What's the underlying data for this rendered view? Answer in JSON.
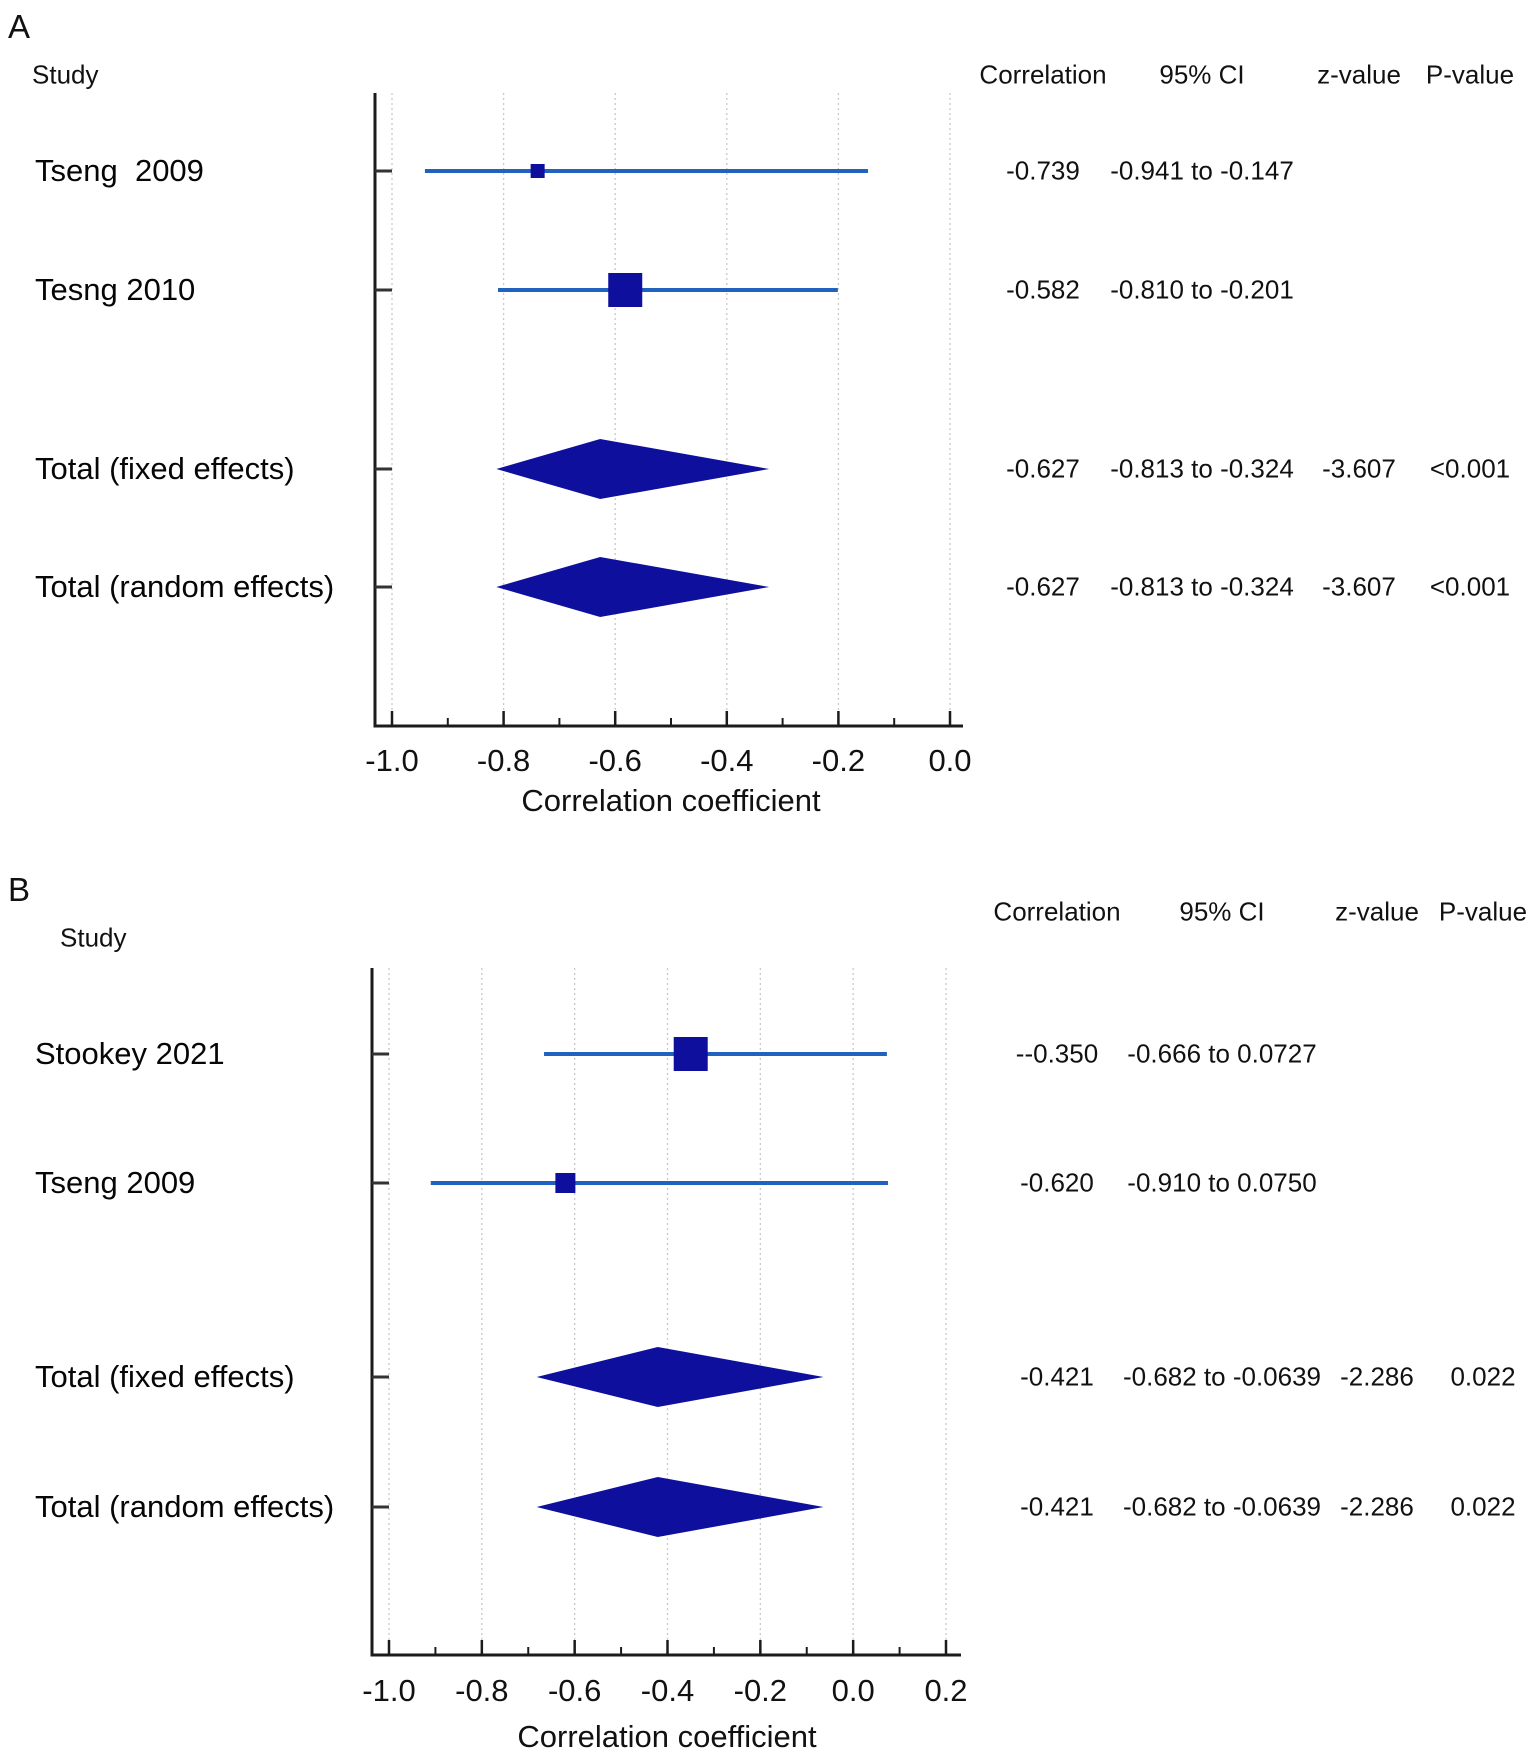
{
  "colors": {
    "marker": "#0f0f9d",
    "ci_line": "#2262bf",
    "axis": "#1b1b1b",
    "grid": "#c9c9c9",
    "text": "#111111"
  },
  "chart_data": [
    {
      "type": "forest",
      "panel_label": "A",
      "study_header": "Study",
      "columns": [
        "Correlation",
        "95% CI",
        "z-value",
        "P-value"
      ],
      "xlabel": "Correlation coefficient",
      "x_tick_labels": [
        "-1.0",
        "-0.8",
        "-0.6",
        "-0.4",
        "-0.2",
        "0.0"
      ],
      "x_tick_values": [
        -1.0,
        -0.8,
        -0.6,
        -0.4,
        -0.2,
        0.0
      ],
      "grid": true,
      "rows": [
        {
          "study": "Tseng  2009",
          "marker": "square",
          "size": 14,
          "est": -0.739,
          "lo": -0.941,
          "hi": -0.147,
          "cells": [
            "-0.739",
            "-0.941 to -0.147",
            "",
            ""
          ]
        },
        {
          "study": "Tesng 2010",
          "marker": "square",
          "size": 34,
          "est": -0.582,
          "lo": -0.81,
          "hi": -0.201,
          "cells": [
            "-0.582",
            "-0.810 to -0.201",
            "",
            ""
          ]
        },
        {
          "study": "Total (fixed effects)",
          "marker": "diamond",
          "est": -0.627,
          "lo": -0.813,
          "hi": -0.324,
          "cells": [
            "-0.627",
            "-0.813 to -0.324",
            "-3.607",
            "<0.001"
          ]
        },
        {
          "study": "Total (random effects)",
          "marker": "diamond",
          "est": -0.627,
          "lo": -0.813,
          "hi": -0.324,
          "cells": [
            "-0.627",
            "-0.813 to -0.324",
            "-3.607",
            "<0.001"
          ]
        }
      ]
    },
    {
      "type": "forest",
      "panel_label": "B",
      "study_header": "Study",
      "columns": [
        "Correlation",
        "95% CI",
        "z-value",
        "P-value"
      ],
      "xlabel": "Correlation coefficient",
      "x_tick_labels": [
        "-1.0",
        "-0.8",
        "-0.6",
        "-0.4",
        "-0.2",
        "0.0",
        "0.2"
      ],
      "x_tick_values": [
        -1.0,
        -0.8,
        -0.6,
        -0.4,
        -0.2,
        0.0,
        0.2
      ],
      "grid": true,
      "rows": [
        {
          "study": "Stookey 2021",
          "marker": "square",
          "size": 34,
          "est": -0.35,
          "lo": -0.666,
          "hi": 0.0727,
          "cells": [
            "--0.350",
            "-0.666 to 0.0727",
            "",
            ""
          ]
        },
        {
          "study": "Tseng 2009",
          "marker": "square",
          "size": 20,
          "est": -0.62,
          "lo": -0.91,
          "hi": 0.075,
          "cells": [
            "-0.620",
            "-0.910 to 0.0750",
            "",
            ""
          ]
        },
        {
          "study": "Total (fixed effects)",
          "marker": "diamond",
          "est": -0.421,
          "lo": -0.682,
          "hi": -0.0639,
          "cells": [
            "-0.421",
            "-0.682 to -0.0639",
            "-2.286",
            "0.022"
          ]
        },
        {
          "study": "Total (random effects)",
          "marker": "diamond",
          "est": -0.421,
          "lo": -0.682,
          "hi": -0.0639,
          "cells": [
            "-0.421",
            "-0.682 to -0.0639",
            "-2.286",
            "0.022"
          ]
        }
      ]
    }
  ]
}
